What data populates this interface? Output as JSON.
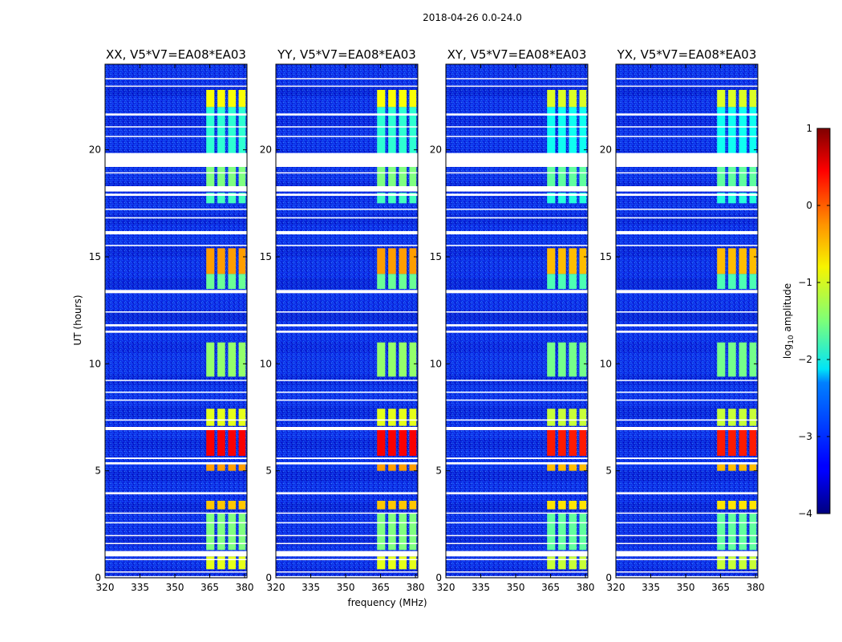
{
  "chart_data": {
    "type": "heatmap",
    "suptitle": "2018-04-26 0.0-24.0",
    "xlabel": "frequency (MHz)",
    "ylabel": "UT (hours)",
    "xlim": [
      320,
      381
    ],
    "ylim": [
      0,
      24
    ],
    "xticks": [
      320,
      335,
      350,
      365,
      380
    ],
    "xtick_labels": [
      "320",
      "335",
      "350",
      "365",
      "380"
    ],
    "yticks": [
      0,
      5,
      10,
      15,
      20
    ],
    "ytick_labels": [
      "0",
      "5",
      "10",
      "15",
      "20"
    ],
    "colorbar": {
      "label_prefix": "log",
      "label_subscript": "10",
      "label_suffix": " amplitude",
      "range": [
        -4,
        1
      ],
      "ticks": [
        1,
        0,
        -1,
        -2,
        -3,
        -4
      ],
      "tick_labels": [
        "1",
        "0",
        "−1",
        "−2",
        "−3",
        "−4"
      ],
      "colormap": "jet"
    },
    "panels": [
      {
        "title": "XX, V5*V7=EA08*EA03",
        "pol": "XX"
      },
      {
        "title": "YY, V5*V7=EA08*EA03",
        "pol": "YY"
      },
      {
        "title": "XY, V5*V7=EA08*EA03",
        "pol": "XY"
      },
      {
        "title": "YX, V5*V7=EA08*EA03",
        "pol": "YX"
      }
    ],
    "rfi_channels_mhz": [
      [
        363.5,
        367.0
      ],
      [
        368.3,
        371.6
      ],
      [
        372.9,
        376.2
      ],
      [
        377.4,
        380.4
      ]
    ],
    "rfi_activity": [
      {
        "ut": [
          0.4,
          1.0
        ],
        "level": -1.0
      },
      {
        "ut": [
          1.3,
          3.0
        ],
        "level": -1.5
      },
      {
        "ut": [
          3.2,
          3.6
        ],
        "level": -0.6
      },
      {
        "ut": [
          5.0,
          5.3
        ],
        "level": -0.4
      },
      {
        "ut": [
          5.7,
          6.9
        ],
        "level": 0.4
      },
      {
        "ut": [
          7.1,
          7.9
        ],
        "level": -1.0
      },
      {
        "ut": [
          9.4,
          11.0
        ],
        "level": -1.4
      },
      {
        "ut": [
          13.5,
          14.2
        ],
        "level": -1.6
      },
      {
        "ut": [
          14.2,
          15.4
        ],
        "level": -0.4
      },
      {
        "ut": [
          17.5,
          18.0
        ],
        "level": -1.8
      },
      {
        "ut": [
          18.3,
          19.2
        ],
        "level": -1.5
      },
      {
        "ut": [
          19.8,
          22.0
        ],
        "level": -1.9
      },
      {
        "ut": [
          22.0,
          22.8
        ],
        "level": -0.9
      }
    ],
    "flagged_ut": [
      [
        0.05,
        0.08
      ],
      [
        0.25,
        0.3
      ],
      [
        0.85,
        0.88
      ],
      [
        1.0,
        1.25
      ],
      [
        1.6,
        1.63
      ],
      [
        1.95,
        2.0
      ],
      [
        2.55,
        2.6
      ],
      [
        3.0,
        3.05
      ],
      [
        3.9,
        4.0
      ],
      [
        5.3,
        5.4
      ],
      [
        5.55,
        5.62
      ],
      [
        6.9,
        7.05
      ],
      [
        7.35,
        7.4
      ],
      [
        8.3,
        8.33
      ],
      [
        8.65,
        8.7
      ],
      [
        9.2,
        9.25
      ],
      [
        11.45,
        11.55
      ],
      [
        11.75,
        11.85
      ],
      [
        12.4,
        12.45
      ],
      [
        13.3,
        13.45
      ],
      [
        15.5,
        15.56
      ],
      [
        16.05,
        16.2
      ],
      [
        16.8,
        16.85
      ],
      [
        17.2,
        17.25
      ],
      [
        17.85,
        17.95
      ],
      [
        18.05,
        18.3
      ],
      [
        18.9,
        18.95
      ],
      [
        19.2,
        19.85
      ],
      [
        20.6,
        20.65
      ],
      [
        21.05,
        21.1
      ],
      [
        21.6,
        21.7
      ],
      [
        22.95,
        23.0
      ],
      [
        23.3,
        23.35
      ]
    ]
  }
}
